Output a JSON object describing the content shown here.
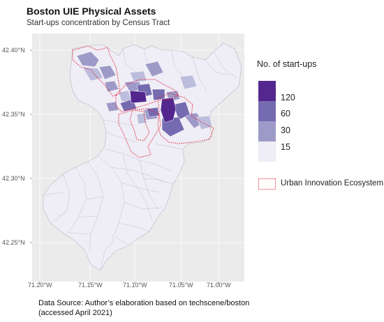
{
  "title": "Boston UIE Physical Assets",
  "subtitle": "Start-ups concentration by Census Tract",
  "axes": {
    "y_labels": [
      "42.40°N",
      "42.35°N",
      "42.30°N",
      "42.25°N"
    ],
    "x_labels": [
      "71.20°W",
      "71.15°W",
      "71.10°W",
      "71.05°W",
      "71.00°W"
    ]
  },
  "legend": {
    "title": "No. of start-ups",
    "bins": [
      {
        "label": "120",
        "color": "#54278f"
      },
      {
        "label": "60",
        "color": "#756bb1"
      },
      {
        "label": "30",
        "color": "#9e9ac8"
      },
      {
        "label": "15",
        "color": "#efedf5"
      }
    ],
    "uie_label": "Urban Innovation Ecosystem",
    "uie_color": "#e0223a"
  },
  "source": {
    "line1": "Data Source:  Author’s elaboration based on techscene/boston",
    "line2": "(accessed April 2021)"
  },
  "colors": {
    "panel": "#ebebeb",
    "land": "#efedf5",
    "tract_border": "#b9b5c8",
    "gridline": "#ffffff"
  }
}
